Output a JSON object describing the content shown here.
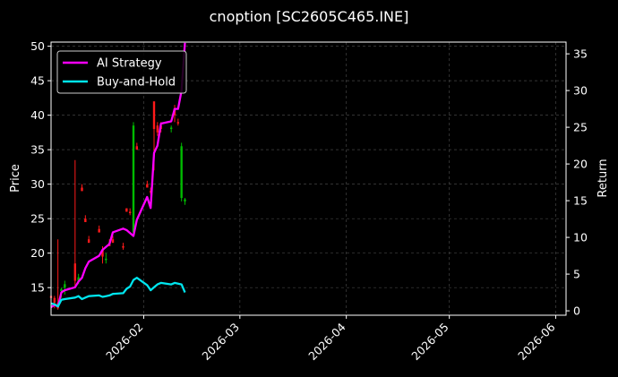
{
  "chart_data": {
    "type": "line",
    "title": "cnoption [SC2605C465.INE]",
    "ylabel": "Price",
    "y2label": "Return",
    "ylim": [
      11,
      50.6
    ],
    "y2lim": [
      -0.6,
      36.6
    ],
    "y_ticks": [
      15,
      20,
      25,
      30,
      35,
      40,
      45,
      50
    ],
    "y2_ticks": [
      0,
      5,
      10,
      15,
      20,
      25,
      30,
      35
    ],
    "xlim": [
      "2026-01-05",
      "2026-06-04"
    ],
    "x_ticks": [
      "2026-02",
      "2026-03",
      "2026-04",
      "2026-05",
      "2026-06"
    ],
    "grid": true,
    "legend_position": "top-left",
    "colors": {
      "background": "#000000",
      "ai_strategy": "#ff00ff",
      "buy_and_hold": "#00e5ee",
      "candle_up": "#00bb00",
      "candle_down": "#ff1a1a",
      "grid": "#444444"
    },
    "series": [
      {
        "name": "AI Strategy",
        "axis": "right",
        "x": [
          "2026-01-05",
          "2026-01-06",
          "2026-01-07",
          "2026-01-08",
          "2026-01-09",
          "2026-01-12",
          "2026-01-13",
          "2026-01-14",
          "2026-01-15",
          "2026-01-16",
          "2026-01-19",
          "2026-01-20",
          "2026-01-21",
          "2026-01-22",
          "2026-01-23",
          "2026-01-26",
          "2026-01-27",
          "2026-01-28",
          "2026-01-29",
          "2026-01-30",
          "2026-02-02",
          "2026-02-03",
          "2026-02-04",
          "2026-02-05",
          "2026-02-06",
          "2026-02-09",
          "2026-02-10",
          "2026-02-11",
          "2026-02-12",
          "2026-02-13"
        ],
        "values": [
          0.5,
          0.8,
          0.6,
          2.5,
          2.8,
          3.2,
          4.0,
          4.5,
          5.8,
          6.7,
          7.5,
          8.3,
          8.7,
          9.1,
          10.7,
          11.2,
          11.0,
          10.6,
          10.2,
          12.4,
          15.5,
          14.0,
          21.5,
          22.5,
          25.5,
          25.8,
          27.5,
          27.5,
          30.0,
          36.5
        ]
      },
      {
        "name": "Buy-and-Hold",
        "axis": "right",
        "x": [
          "2026-01-05",
          "2026-01-06",
          "2026-01-07",
          "2026-01-08",
          "2026-01-09",
          "2026-01-12",
          "2026-01-13",
          "2026-01-14",
          "2026-01-15",
          "2026-01-16",
          "2026-01-19",
          "2026-01-20",
          "2026-01-21",
          "2026-01-22",
          "2026-01-23",
          "2026-01-26",
          "2026-01-27",
          "2026-01-28",
          "2026-01-29",
          "2026-01-30",
          "2026-02-02",
          "2026-02-03",
          "2026-02-04",
          "2026-02-05",
          "2026-02-06",
          "2026-02-09",
          "2026-02-10",
          "2026-02-11",
          "2026-02-12",
          "2026-02-13"
        ],
        "values": [
          1.0,
          0.9,
          0.6,
          1.5,
          1.6,
          1.8,
          2.0,
          1.6,
          1.8,
          2.0,
          2.1,
          1.9,
          2.0,
          2.1,
          2.3,
          2.4,
          3.0,
          3.3,
          4.2,
          4.5,
          3.5,
          2.8,
          3.2,
          3.6,
          3.8,
          3.6,
          3.8,
          3.7,
          3.6,
          2.5
        ]
      }
    ],
    "candles": {
      "axis": "left",
      "x": [
        "2026-01-05",
        "2026-01-06",
        "2026-01-07",
        "2026-01-08",
        "2026-01-09",
        "2026-01-12",
        "2026-01-13",
        "2026-01-14",
        "2026-01-15",
        "2026-01-16",
        "2026-01-19",
        "2026-01-20",
        "2026-01-21",
        "2026-01-22",
        "2026-01-23",
        "2026-01-26",
        "2026-01-27",
        "2026-01-28",
        "2026-01-29",
        "2026-01-30",
        "2026-02-02",
        "2026-02-03",
        "2026-02-04",
        "2026-02-05",
        "2026-02-06",
        "2026-02-09",
        "2026-02-10",
        "2026-02-11",
        "2026-02-12",
        "2026-02-13"
      ],
      "open": [
        13.8,
        13.5,
        12.8,
        14.5,
        15.0,
        18.5,
        16.0,
        29.5,
        25.0,
        22.0,
        23.5,
        20.5,
        19.0,
        21.5,
        22.0,
        21.0,
        26.5,
        26.0,
        23.0,
        35.5,
        30.0,
        29.0,
        42.0,
        38.5,
        38.5,
        38.0,
        41.0,
        39.0,
        28.0,
        27.5
      ],
      "high": [
        14.0,
        13.8,
        22.0,
        15.0,
        16.0,
        33.5,
        17.0,
        30.0,
        25.5,
        22.5,
        24.0,
        21.0,
        20.0,
        22.0,
        22.5,
        21.5,
        26.5,
        26.5,
        39.0,
        36.0,
        30.5,
        29.5,
        42.0,
        39.0,
        39.0,
        38.5,
        41.5,
        39.5,
        36.0,
        28.0
      ],
      "low": [
        13.0,
        12.0,
        11.8,
        13.5,
        14.0,
        15.0,
        15.5,
        29.0,
        24.5,
        21.5,
        23.0,
        18.5,
        18.5,
        21.0,
        21.5,
        20.5,
        26.0,
        25.5,
        22.5,
        35.0,
        29.5,
        28.5,
        32.0,
        37.0,
        37.5,
        37.5,
        39.0,
        38.5,
        27.5,
        27.0
      ],
      "close": [
        13.5,
        12.8,
        12.0,
        14.8,
        15.5,
        16.0,
        16.5,
        29.0,
        24.5,
        21.5,
        23.0,
        19.5,
        19.2,
        21.0,
        21.5,
        20.8,
        26.0,
        25.8,
        38.5,
        35.0,
        29.5,
        28.8,
        38.0,
        37.5,
        38.0,
        38.2,
        40.0,
        38.8,
        35.5,
        27.8
      ]
    }
  }
}
